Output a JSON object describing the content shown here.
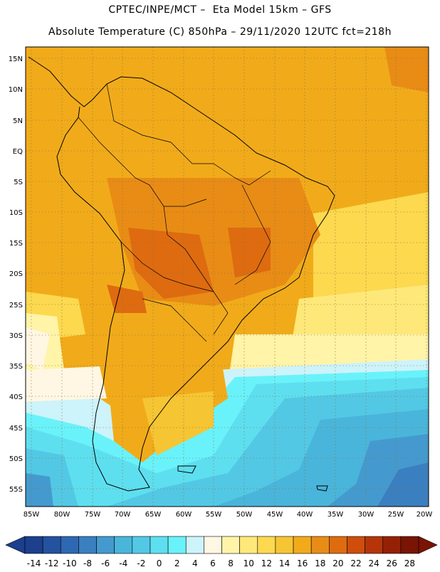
{
  "header": {
    "title_line1": "CPTEC/INPE/MCT –  Eta Model 15km – GFS",
    "title_line2": "Absolute Temperature (C) 850hPa – 29/11/2020 12UTC fct=218h"
  },
  "map": {
    "lat_labels": [
      "15N",
      "10N",
      "5N",
      "EQ",
      "5S",
      "10S",
      "15S",
      "20S",
      "25S",
      "30S",
      "35S",
      "40S",
      "45S",
      "50S",
      "55S"
    ],
    "lon_labels": [
      "85W",
      "80W",
      "75W",
      "70W",
      "65W",
      "60W",
      "55W",
      "50W",
      "45W",
      "40W",
      "35W",
      "30W",
      "25W",
      "20W"
    ],
    "gridlines": "dotted",
    "region": "South America",
    "lat_range": [
      -58,
      16
    ],
    "lon_range": [
      -86,
      -20
    ]
  },
  "colorbar": {
    "labels": [
      "-14",
      "-12",
      "-10",
      "-8",
      "-6",
      "-4",
      "-2",
      "0",
      "2",
      "4",
      "6",
      "8",
      "10",
      "12",
      "14",
      "16",
      "18",
      "20",
      "22",
      "24",
      "26",
      "28"
    ],
    "colors": [
      "#1c3f8e",
      "#24529f",
      "#2e68b2",
      "#3a7fc0",
      "#449ace",
      "#4ab5da",
      "#53c8e5",
      "#5edfef",
      "#6af2fa",
      "#cdf3fb",
      "#fff7e3",
      "#fff4a8",
      "#ffe87a",
      "#fcd94f",
      "#f6c533",
      "#f1ab1a",
      "#e88c16",
      "#de6b10",
      "#cf4e0c",
      "#b53508",
      "#962006",
      "#7a1404"
    ]
  }
}
